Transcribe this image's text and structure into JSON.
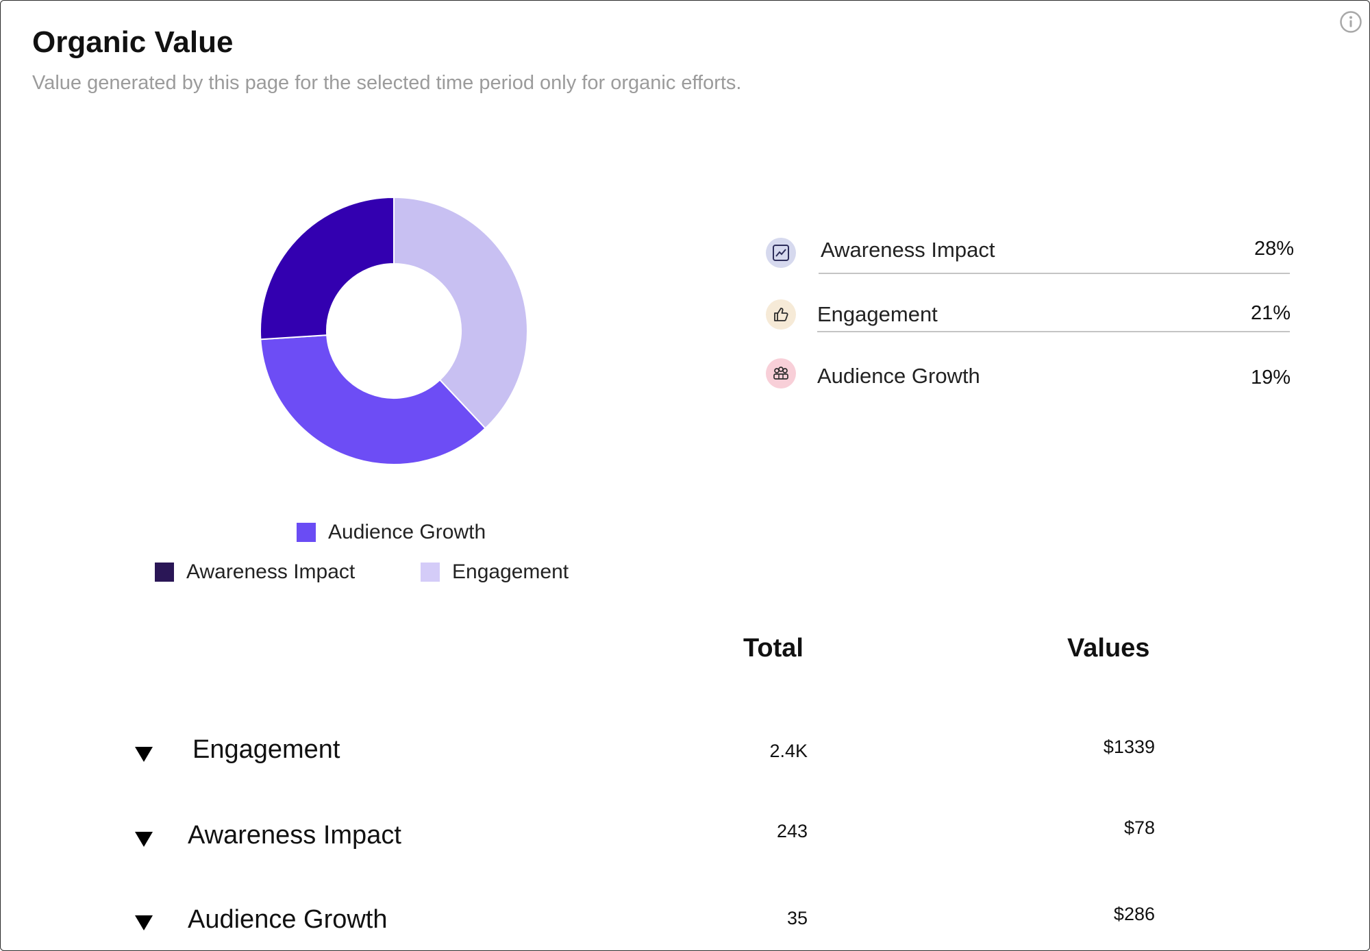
{
  "header": {
    "title": "Organic Value",
    "subtitle": "Value generated by this page for the selected time period only for organic efforts."
  },
  "colors": {
    "awareness": "#3300b0",
    "audience": "#6d4df5",
    "engagement": "#c8c0f2",
    "legend_awareness": "#2a1656",
    "legend_audience": "#6a4cf4",
    "legend_engagement": "#d4ccf8"
  },
  "chart_data": {
    "type": "donut",
    "series": [
      {
        "name": "Engagement",
        "value": 38
      },
      {
        "name": "Audience Growth",
        "value": 36
      },
      {
        "name": "Awareness Impact",
        "value": 26
      }
    ],
    "legend": {
      "row1": [
        "Audience Growth"
      ],
      "row2": [
        "Awareness Impact",
        "Engagement"
      ]
    }
  },
  "stats": [
    {
      "label": "Awareness Impact",
      "value": "28%",
      "icon": "chart-trend-icon",
      "icon_bg": "#d6d9ee"
    },
    {
      "label": "Engagement",
      "value": "21%",
      "icon": "thumbs-up-icon",
      "icon_bg": "#f6ead7"
    },
    {
      "label": "Audience Growth",
      "value": "19%",
      "icon": "people-icon",
      "icon_bg": "#f8cfd8"
    }
  ],
  "table": {
    "col_total": "Total",
    "col_values": "Values",
    "rows": [
      {
        "label": "Engagement",
        "total": "2.4K",
        "value": "$1339"
      },
      {
        "label": "Awareness Impact",
        "total": "243",
        "value": "$78"
      },
      {
        "label": "Audience Growth",
        "total": "35",
        "value": "$286"
      }
    ]
  }
}
